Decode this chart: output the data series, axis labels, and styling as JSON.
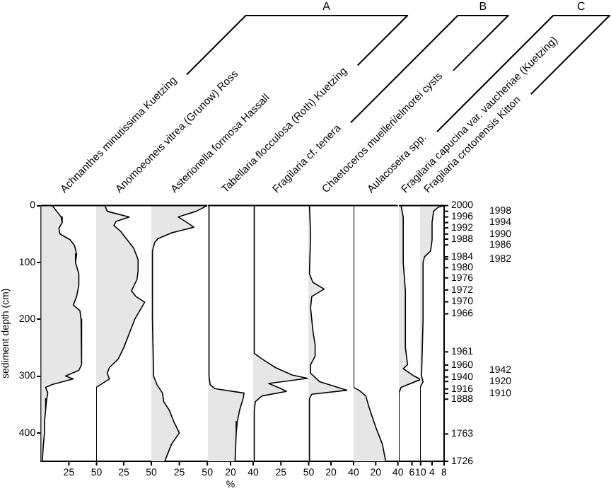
{
  "chart_data": [
    {
      "type": "area",
      "orientation": "horizontal",
      "title": "Achnanthes minutissima Kuetzing",
      "ylabel": "sediment depth (cm)",
      "annotations": [
        "A"
      ],
      "color": "#e6e6e6",
      "x": [
        0,
        10,
        20,
        30,
        40,
        50,
        60,
        70,
        85,
        100,
        120,
        140,
        160,
        175,
        185,
        200,
        250,
        280,
        290,
        300,
        305,
        315,
        320,
        330,
        340,
        360,
        380,
        400,
        420,
        450
      ],
      "values": [
        10,
        14,
        18,
        19,
        16,
        17,
        26,
        30,
        32,
        31,
        34,
        34,
        32,
        29,
        35,
        36,
        36,
        37,
        34,
        22,
        29,
        10,
        4,
        6,
        5,
        4,
        3,
        3,
        2,
        1
      ],
      "xlim": [
        0,
        50
      ],
      "xticks": [
        25,
        50
      ],
      "ylim": [
        450,
        0
      ],
      "yticks": [
        0,
        100,
        200,
        300,
        400
      ]
    },
    {
      "type": "area",
      "orientation": "horizontal",
      "title": "Anomoeoneis vitrea (Grunow) Ross",
      "color": "#e6e6e6",
      "x": [
        0,
        10,
        20,
        28,
        35,
        45,
        60,
        75,
        95,
        115,
        130,
        150,
        160,
        170,
        200,
        250,
        270,
        285,
        295,
        305,
        320,
        450
      ],
      "values": [
        8,
        10,
        30,
        18,
        16,
        22,
        28,
        34,
        38,
        38,
        37,
        32,
        36,
        44,
        35,
        25,
        20,
        12,
        10,
        12,
        0,
        0
      ],
      "xlim": [
        0,
        50
      ],
      "xticks": [
        25,
        50
      ],
      "ylim": [
        450,
        0
      ],
      "tick_labels": "x"
    },
    {
      "type": "area",
      "orientation": "horizontal",
      "title": "Asterionella formosa Hassall",
      "color": "#e6e6e6",
      "x": [
        0,
        10,
        20,
        30,
        38,
        48,
        58,
        65,
        80,
        100,
        200,
        300,
        315,
        330,
        345,
        360,
        380,
        400,
        420,
        450
      ],
      "values": [
        50,
        40,
        24,
        32,
        38,
        18,
        6,
        3,
        1,
        1,
        1,
        2,
        5,
        10,
        11,
        16,
        20,
        25,
        18,
        12
      ],
      "xlim": [
        0,
        50
      ],
      "xticks": [
        25,
        50
      ],
      "ylim": [
        450,
        0
      ],
      "tick_labels": "x"
    },
    {
      "type": "area",
      "orientation": "horizontal",
      "title": "Tabellaria flocculosa (Roth) Kuetzing",
      "xlabel": "%",
      "color": "#e6e6e6",
      "x": [
        0,
        100,
        300,
        315,
        322,
        330,
        340,
        360,
        380,
        400,
        450
      ],
      "values": [
        1,
        1,
        1,
        2,
        6,
        32,
        31,
        28,
        26,
        25,
        24
      ],
      "xlim": [
        0,
        40
      ],
      "xticks": [
        20,
        40
      ],
      "ylim": [
        450,
        0
      ],
      "tick_labels": "x"
    },
    {
      "type": "area",
      "orientation": "horizontal",
      "title": "Fragilaria cf. tenera",
      "annotations": [
        "B"
      ],
      "color": "#e6e6e6",
      "x": [
        0,
        100,
        260,
        270,
        285,
        298,
        304,
        313,
        322,
        327,
        335,
        345,
        360,
        450
      ],
      "values": [
        1,
        1,
        1,
        8,
        20,
        35,
        49,
        14,
        25,
        30,
        8,
        2,
        1,
        1
      ],
      "xlim": [
        0,
        50
      ],
      "xticks": [
        25,
        50
      ],
      "ylim": [
        450,
        0
      ],
      "tick_labels": "x"
    },
    {
      "type": "area",
      "orientation": "horizontal",
      "title": "Chaetoceros muelleri/elmorei cysts",
      "color": "#e6e6e6",
      "x": [
        0,
        50,
        120,
        135,
        147,
        160,
        180,
        220,
        245,
        265,
        280,
        295,
        310,
        325,
        332,
        340,
        450
      ],
      "values": [
        1,
        2,
        1,
        4,
        14,
        3,
        2,
        4,
        6,
        6,
        2,
        2,
        10,
        34,
        3,
        1,
        1
      ],
      "xlim": [
        0,
        40
      ],
      "xticks": [
        20,
        40
      ],
      "ylim": [
        450,
        0
      ],
      "tick_labels": "x"
    },
    {
      "type": "area",
      "orientation": "horizontal",
      "title": "Aulacoseira spp.",
      "annotations": [
        "C"
      ],
      "color": "#e6e6e6",
      "x": [
        0,
        320,
        325,
        335,
        355,
        390,
        420,
        450
      ],
      "values": [
        0,
        0,
        5,
        11,
        14,
        20,
        26,
        29
      ],
      "xlim": [
        0,
        40
      ],
      "xticks": [
        20,
        40
      ],
      "ylim": [
        450,
        0
      ],
      "tick_labels": "x"
    },
    {
      "type": "area",
      "orientation": "horizontal",
      "title": "Fragilaria capucina var. vaucheriae (Kuetzing)",
      "color": "#e6e6e6",
      "x": [
        0,
        20,
        60,
        100,
        150,
        200,
        250,
        280,
        287,
        300,
        306,
        320,
        330,
        450
      ],
      "values": [
        1,
        2,
        2,
        2,
        3,
        3,
        3,
        4,
        2,
        7,
        10,
        1,
        0,
        0
      ],
      "xlim": [
        0,
        10
      ],
      "xticks": [
        6,
        10
      ],
      "ylim": [
        450,
        0
      ],
      "tick_labels": "x"
    },
    {
      "type": "area",
      "orientation": "horizontal",
      "title": "Fragilaria crotonensis Kitton",
      "color": "#e6e6e6",
      "x": [
        0,
        3,
        10,
        30,
        60,
        80,
        90,
        100,
        200,
        300,
        310,
        320,
        450
      ],
      "values": [
        8,
        6,
        4.5,
        4,
        4,
        3.5,
        1.5,
        1,
        1,
        0.5,
        1,
        0,
        0
      ],
      "xlim": [
        0,
        8
      ],
      "xticks": [
        4,
        8
      ],
      "ylim": [
        450,
        0
      ],
      "tick_labels": "x",
      "annotations": [
        "2000",
        "1998",
        "1996",
        "1994",
        "1992",
        "1990",
        "1988",
        "1986",
        "1984",
        "1982",
        "1980",
        "1976",
        "1972",
        "1970",
        "1966",
        "1961",
        "1960",
        "1942",
        "1940",
        "1920",
        "1916",
        "1910",
        "1888",
        "1763",
        "1726"
      ]
    }
  ]
}
